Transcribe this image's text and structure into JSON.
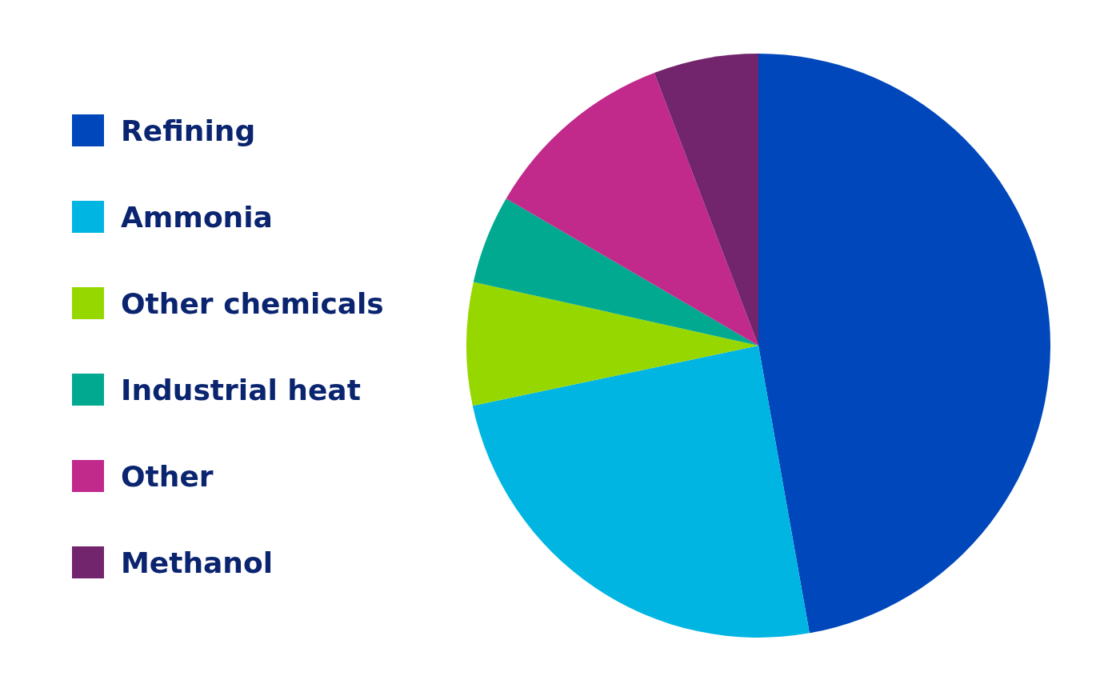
{
  "chart_data": {
    "type": "pie",
    "categories": [
      "Refining",
      "Ammonia",
      "Other chemicals",
      "Industrial heat",
      "Other",
      "Methanol"
    ],
    "values": [
      47.2,
      24.5,
      6.8,
      4.9,
      10.8,
      5.8
    ],
    "colors": [
      "#0047bb",
      "#00b5e2",
      "#97d700",
      "#00a98f",
      "#c1298b",
      "#72246c"
    ],
    "legend": "left"
  }
}
